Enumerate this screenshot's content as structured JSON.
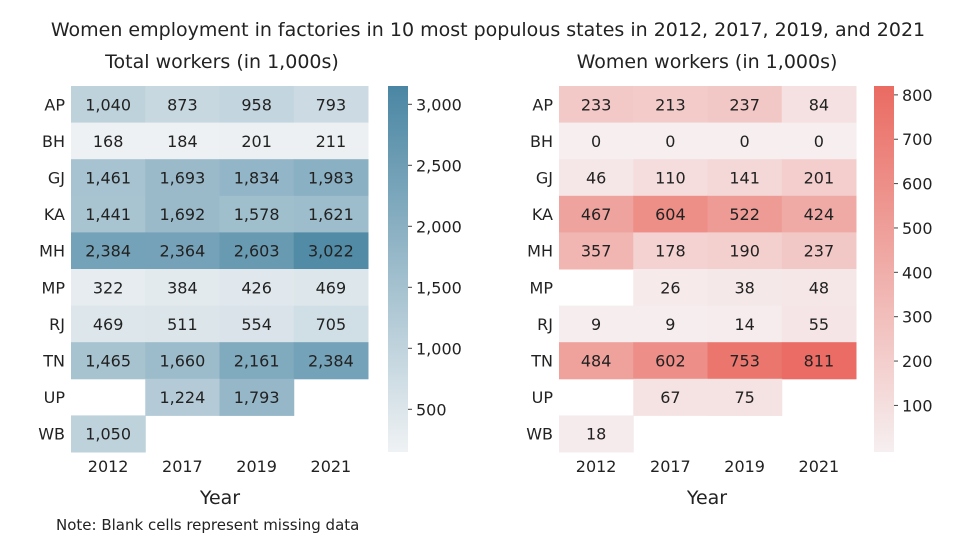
{
  "title": "Women employment in factories in 10 most populous states in 2012, 2017, 2019, and 2021",
  "note": "Note: Blank cells represent missing data",
  "colors": {
    "total_dark": "#4a86a3",
    "total_light": "#eff2f4",
    "women_dark": "#ea6b62",
    "women_light": "#f6eff0"
  },
  "chart_data": [
    {
      "type": "heatmap",
      "title": "Total workers (in 1,000s)",
      "xlabel": "Year",
      "ylabel": "",
      "x": [
        "2012",
        "2017",
        "2019",
        "2021"
      ],
      "y": [
        "AP",
        "BH",
        "GJ",
        "KA",
        "MH",
        "MP",
        "RJ",
        "TN",
        "UP",
        "WB"
      ],
      "values": [
        [
          1040,
          873,
          958,
          793
        ],
        [
          168,
          184,
          201,
          211
        ],
        [
          1461,
          1693,
          1834,
          1983
        ],
        [
          1441,
          1692,
          1578,
          1621
        ],
        [
          2384,
          2364,
          2603,
          3022
        ],
        [
          322,
          384,
          426,
          469
        ],
        [
          469,
          511,
          554,
          705
        ],
        [
          1465,
          1660,
          2161,
          2384
        ],
        [
          null,
          1224,
          1793,
          null
        ],
        [
          1050,
          null,
          null,
          null
        ]
      ],
      "colorbar": {
        "range": [
          150,
          3150
        ],
        "ticks": [
          500,
          1000,
          1500,
          2000,
          2500,
          3000
        ],
        "tick_labels": [
          "500",
          "1,000",
          "1,500",
          "2,000",
          "2,500",
          "3,000"
        ]
      }
    },
    {
      "type": "heatmap",
      "title": "Women workers (in 1,000s)",
      "xlabel": "Year",
      "ylabel": "",
      "x": [
        "2012",
        "2017",
        "2019",
        "2021"
      ],
      "y": [
        "AP",
        "BH",
        "GJ",
        "KA",
        "MH",
        "MP",
        "RJ",
        "TN",
        "UP",
        "WB"
      ],
      "values": [
        [
          233,
          213,
          237,
          84
        ],
        [
          0,
          0,
          0,
          0
        ],
        [
          46,
          110,
          141,
          201
        ],
        [
          467,
          604,
          522,
          424
        ],
        [
          357,
          178,
          190,
          237
        ],
        [
          null,
          26,
          38,
          48
        ],
        [
          9,
          9,
          14,
          55
        ],
        [
          484,
          602,
          753,
          811
        ],
        [
          null,
          67,
          75,
          null
        ],
        [
          18,
          null,
          null,
          null
        ]
      ],
      "colorbar": {
        "range": [
          -5,
          820
        ],
        "ticks": [
          100,
          200,
          300,
          400,
          500,
          600,
          700,
          800
        ],
        "tick_labels": [
          "100",
          "200",
          "300",
          "400",
          "500",
          "600",
          "700",
          "800"
        ]
      }
    }
  ]
}
